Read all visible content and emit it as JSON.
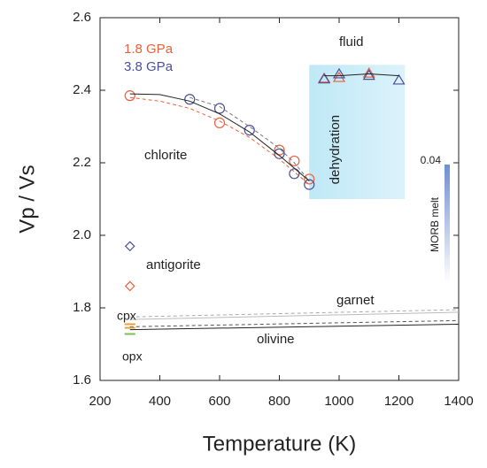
{
  "chart_data": {
    "type": "scatter",
    "xlabel": "Temperature (K)",
    "ylabel": "Vp / Vs",
    "xlim": [
      200,
      1400
    ],
    "xticks": [
      200,
      400,
      600,
      800,
      1000,
      1200,
      1400
    ],
    "ylim": [
      1.6,
      2.6
    ],
    "yticks": [
      1.6,
      1.8,
      {
        "value": 2.0,
        "label": "2.0"
      },
      2.2,
      2.4,
      2.6
    ],
    "annotations": [
      "fluid",
      "chlorite",
      "antigorite",
      "garnet",
      "olivine",
      "cpx",
      "opx",
      "0.04",
      "MORB melt"
    ],
    "regions": [
      {
        "label": "dehydration",
        "xlim": [
          900,
          1220
        ],
        "ylim": [
          2.1,
          2.47
        ]
      }
    ],
    "series": [
      {
        "name": "1.8 GPa",
        "color": "#e8613c",
        "marker": "circle",
        "x": [
          300,
          600,
          800,
          850,
          900
        ],
        "values": [
          2.385,
          2.31,
          2.235,
          2.205,
          2.155
        ]
      },
      {
        "name": "3.8 GPa",
        "color": "#4a4f9a",
        "marker": "circle",
        "x": [
          500,
          600,
          700,
          800,
          850,
          900
        ],
        "values": [
          2.375,
          2.35,
          2.29,
          2.225,
          2.17,
          2.14
        ]
      },
      {
        "color": "#e8613c",
        "marker": "triangle",
        "x": [
          950,
          1000,
          1100
        ],
        "values": [
          2.432,
          2.434,
          2.446
        ]
      },
      {
        "color": "#4a4f9a",
        "marker": "triangle",
        "x": [
          950,
          1000,
          1100,
          1200
        ],
        "values": [
          2.43,
          2.444,
          2.44,
          2.427
        ]
      },
      {
        "color": "#4a4f9a",
        "marker": "diamond",
        "x": [
          300
        ],
        "values": [
          1.97
        ]
      },
      {
        "color": "#e8613c",
        "marker": "diamond",
        "x": [
          300
        ],
        "values": [
          1.86
        ]
      },
      {
        "color": "#222222",
        "line": "solid",
        "x": [
          300,
          400,
          500,
          600,
          700,
          800,
          900
        ],
        "values": [
          2.39,
          2.388,
          2.37,
          2.335,
          2.285,
          2.22,
          2.15
        ]
      },
      {
        "color": "#e8613c",
        "line": "dashed",
        "x": [
          300,
          400,
          500,
          600,
          700,
          800,
          900
        ],
        "values": [
          2.38,
          2.37,
          2.35,
          2.315,
          2.27,
          2.21,
          2.14
        ]
      },
      {
        "color": "#777777",
        "line": "dashed",
        "x": [
          500,
          600,
          700,
          800,
          850,
          900
        ],
        "values": [
          2.38,
          2.355,
          2.3,
          2.24,
          2.2,
          2.15
        ]
      },
      {
        "color": "#222222",
        "line": "solid",
        "x": [
          950,
          1000,
          1100,
          1200
        ],
        "values": [
          2.44,
          2.44,
          2.445,
          2.44
        ]
      },
      {
        "color": "#aaaaaa",
        "line": "dashed",
        "x": [
          300,
          1400
        ],
        "values": [
          1.775,
          1.795
        ]
      },
      {
        "color": "#bbbbbb",
        "line": "solid",
        "x": [
          300,
          1400
        ],
        "values": [
          1.768,
          1.788
        ]
      },
      {
        "color": "#555555",
        "line": "dashed",
        "x": [
          300,
          1400
        ],
        "values": [
          1.748,
          1.765
        ]
      },
      {
        "color": "#222222",
        "line": "solid",
        "x": [
          300,
          1400
        ],
        "values": [
          1.74,
          1.755
        ]
      },
      {
        "color": "#e8a040",
        "marker": "dash",
        "x": [
          300,
          300
        ],
        "values": [
          1.755,
          1.745
        ]
      },
      {
        "color": "#7cbf5a",
        "marker": "dash",
        "x": [
          300
        ],
        "values": [
          1.728
        ]
      }
    ]
  }
}
